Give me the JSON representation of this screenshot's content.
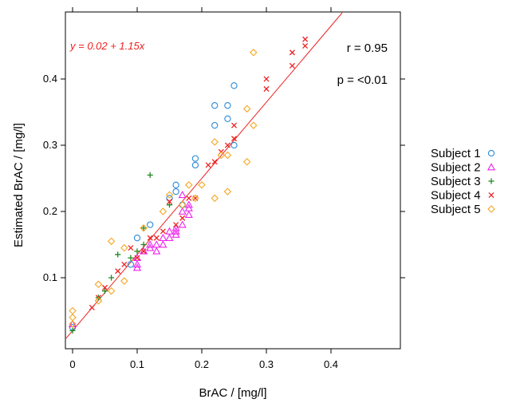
{
  "chart_data": {
    "type": "scatter",
    "title": "",
    "xlabel": "BrAC / [mg/l]",
    "ylabel": "Estimated BrAC / [mg/l]",
    "xlim": [
      -0.01,
      0.5
    ],
    "ylim": [
      -0.01,
      0.5
    ],
    "x_ticks": [
      0,
      0.1,
      0.2,
      0.3,
      0.4
    ],
    "x_tick_labels": [
      "0",
      "0.1",
      "0.2",
      "0.3",
      "0.4"
    ],
    "y_ticks": [
      0.1,
      0.2,
      0.3,
      0.4
    ],
    "y_tick_labels": [
      "0.1",
      "0.2",
      "0.3",
      "0.4"
    ],
    "grid": false,
    "legend_position": "right",
    "annotations": {
      "equation": "y = 0.02 + 1.15x",
      "r_label": "r = 0.95",
      "p_label": "p = <0.01"
    },
    "regression": {
      "intercept": 0.02,
      "slope": 1.15,
      "color": "#ee2222"
    },
    "series": [
      {
        "name": "Subject 1",
        "marker": "circle",
        "color": "#2a8ad8",
        "points": [
          [
            0,
            0.025
          ],
          [
            0.09,
            0.12
          ],
          [
            0.1,
            0.16
          ],
          [
            0.12,
            0.18
          ],
          [
            0.15,
            0.22
          ],
          [
            0.16,
            0.24
          ],
          [
            0.16,
            0.23
          ],
          [
            0.17,
            0.21
          ],
          [
            0.19,
            0.28
          ],
          [
            0.19,
            0.27
          ],
          [
            0.22,
            0.36
          ],
          [
            0.22,
            0.33
          ],
          [
            0.24,
            0.36
          ],
          [
            0.24,
            0.34
          ],
          [
            0.25,
            0.39
          ],
          [
            0.25,
            0.3
          ]
        ]
      },
      {
        "name": "Subject 2",
        "marker": "triangle",
        "color": "#ee22ee",
        "points": [
          [
            0,
            0.03
          ],
          [
            0.1,
            0.12
          ],
          [
            0.1,
            0.13
          ],
          [
            0.1,
            0.115
          ],
          [
            0.11,
            0.14
          ],
          [
            0.12,
            0.145
          ],
          [
            0.12,
            0.15
          ],
          [
            0.13,
            0.14
          ],
          [
            0.13,
            0.15
          ],
          [
            0.14,
            0.15
          ],
          [
            0.14,
            0.16
          ],
          [
            0.15,
            0.17
          ],
          [
            0.15,
            0.16
          ],
          [
            0.16,
            0.165
          ],
          [
            0.16,
            0.17
          ],
          [
            0.16,
            0.175
          ],
          [
            0.17,
            0.18
          ],
          [
            0.17,
            0.2
          ],
          [
            0.17,
            0.225
          ],
          [
            0.18,
            0.21
          ],
          [
            0.18,
            0.195
          ],
          [
            0.18,
            0.205
          ]
        ]
      },
      {
        "name": "Subject 3",
        "marker": "plus",
        "color": "#228822",
        "points": [
          [
            0,
            0.02
          ],
          [
            0.04,
            0.07
          ],
          [
            0.05,
            0.08
          ],
          [
            0.06,
            0.1
          ],
          [
            0.07,
            0.135
          ],
          [
            0.09,
            0.13
          ],
          [
            0.1,
            0.14
          ],
          [
            0.11,
            0.15
          ],
          [
            0.11,
            0.175
          ],
          [
            0.12,
            0.255
          ],
          [
            0.15,
            0.21
          ]
        ]
      },
      {
        "name": "Subject 4",
        "marker": "cross",
        "color": "#ee2222",
        "points": [
          [
            0.03,
            0.055
          ],
          [
            0.04,
            0.07
          ],
          [
            0.05,
            0.085
          ],
          [
            0.07,
            0.11
          ],
          [
            0.08,
            0.12
          ],
          [
            0.09,
            0.145
          ],
          [
            0.1,
            0.13
          ],
          [
            0.11,
            0.14
          ],
          [
            0.12,
            0.16
          ],
          [
            0.13,
            0.16
          ],
          [
            0.14,
            0.17
          ],
          [
            0.15,
            0.215
          ],
          [
            0.16,
            0.18
          ],
          [
            0.17,
            0.19
          ],
          [
            0.18,
            0.22
          ],
          [
            0.19,
            0.22
          ],
          [
            0.21,
            0.27
          ],
          [
            0.22,
            0.275
          ],
          [
            0.23,
            0.29
          ],
          [
            0.24,
            0.3
          ],
          [
            0.25,
            0.33
          ],
          [
            0.25,
            0.31
          ],
          [
            0.3,
            0.385
          ],
          [
            0.3,
            0.4
          ],
          [
            0.34,
            0.42
          ],
          [
            0.34,
            0.44
          ],
          [
            0.36,
            0.46
          ],
          [
            0.36,
            0.45
          ]
        ]
      },
      {
        "name": "Subject 5",
        "marker": "diamond",
        "color": "#f5a623",
        "points": [
          [
            0,
            0.05
          ],
          [
            0,
            0.04
          ],
          [
            0,
            0.03
          ],
          [
            0.04,
            0.09
          ],
          [
            0.04,
            0.065
          ],
          [
            0.06,
            0.155
          ],
          [
            0.06,
            0.08
          ],
          [
            0.08,
            0.095
          ],
          [
            0.08,
            0.145
          ],
          [
            0.11,
            0.175
          ],
          [
            0.14,
            0.2
          ],
          [
            0.15,
            0.225
          ],
          [
            0.17,
            0.21
          ],
          [
            0.18,
            0.24
          ],
          [
            0.19,
            0.22
          ],
          [
            0.2,
            0.24
          ],
          [
            0.22,
            0.305
          ],
          [
            0.22,
            0.22
          ],
          [
            0.23,
            0.285
          ],
          [
            0.24,
            0.285
          ],
          [
            0.24,
            0.23
          ],
          [
            0.27,
            0.355
          ],
          [
            0.27,
            0.275
          ],
          [
            0.28,
            0.44
          ],
          [
            0.28,
            0.33
          ]
        ]
      }
    ]
  }
}
